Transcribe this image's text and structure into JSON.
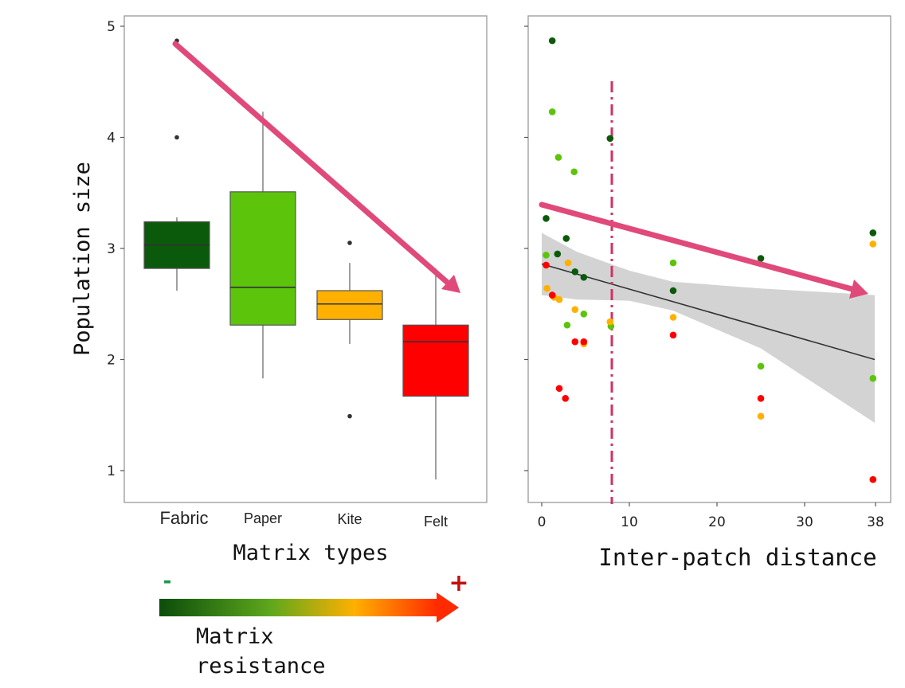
{
  "chart_data": [
    {
      "type": "box",
      "ylabel": "Population size",
      "xlabel": "Matrix types",
      "ylim": [
        0.7,
        5.0
      ],
      "yticks": [
        1,
        2,
        3,
        4,
        5
      ],
      "categories": [
        "Fabric",
        "Paper",
        "Kite",
        "Felt"
      ],
      "boxes": [
        {
          "name": "Fabric",
          "color": "#0b5a0b",
          "whisker_low": 2.62,
          "q1": 2.82,
          "median": 3.03,
          "q3": 3.24,
          "whisker_high": 3.28,
          "outliers": [
            4.0,
            4.87
          ]
        },
        {
          "name": "Paper",
          "color": "#5cc40a",
          "whisker_low": 1.83,
          "q1": 2.31,
          "median": 2.65,
          "q3": 3.51,
          "whisker_high": 4.23,
          "outliers": []
        },
        {
          "name": "Kite",
          "color": "#ffb000",
          "whisker_low": 2.14,
          "q1": 2.36,
          "median": 2.5,
          "q3": 2.62,
          "whisker_high": 2.87,
          "outliers": [
            3.05,
            1.49
          ]
        },
        {
          "name": "Felt",
          "color": "#ff0000",
          "whisker_low": 0.92,
          "q1": 1.67,
          "median": 2.16,
          "q3": 2.31,
          "whisker_high": 2.82,
          "outliers": []
        }
      ],
      "trend_arrow_color": "#e04a7a"
    },
    {
      "type": "scatter",
      "xlabel": "Inter-patch distance",
      "xlim": [
        -1,
        39
      ],
      "ylim": [
        0.7,
        5.0
      ],
      "xticks": [
        0,
        10,
        20,
        30,
        38
      ],
      "yticks": [
        1,
        2,
        3,
        4,
        5
      ],
      "point_colors": {
        "Fabric": "#0b5a0b",
        "Paper": "#5cc40a",
        "Kite": "#ffb000",
        "Felt": "#ff0000"
      },
      "points": [
        {
          "x": 1.2,
          "y": 4.87,
          "group": "Fabric"
        },
        {
          "x": 0.5,
          "y": 3.27,
          "group": "Fabric"
        },
        {
          "x": 2.8,
          "y": 3.09,
          "group": "Fabric"
        },
        {
          "x": 1.8,
          "y": 2.95,
          "group": "Fabric"
        },
        {
          "x": 3.8,
          "y": 2.79,
          "group": "Fabric"
        },
        {
          "x": 4.8,
          "y": 2.74,
          "group": "Fabric"
        },
        {
          "x": 7.8,
          "y": 3.99,
          "group": "Fabric"
        },
        {
          "x": 15,
          "y": 2.62,
          "group": "Fabric"
        },
        {
          "x": 25,
          "y": 2.91,
          "group": "Fabric"
        },
        {
          "x": 37.8,
          "y": 3.14,
          "group": "Fabric"
        },
        {
          "x": 1.2,
          "y": 4.23,
          "group": "Paper"
        },
        {
          "x": 1.9,
          "y": 3.82,
          "group": "Paper"
        },
        {
          "x": 3.7,
          "y": 3.69,
          "group": "Paper"
        },
        {
          "x": 0.5,
          "y": 2.94,
          "group": "Paper"
        },
        {
          "x": 2.9,
          "y": 2.31,
          "group": "Paper"
        },
        {
          "x": 4.8,
          "y": 2.41,
          "group": "Paper"
        },
        {
          "x": 7.9,
          "y": 2.3,
          "group": "Paper"
        },
        {
          "x": 15,
          "y": 2.87,
          "group": "Paper"
        },
        {
          "x": 25,
          "y": 1.94,
          "group": "Paper"
        },
        {
          "x": 37.8,
          "y": 1.83,
          "group": "Paper"
        },
        {
          "x": 3.0,
          "y": 2.87,
          "group": "Kite"
        },
        {
          "x": 0.6,
          "y": 2.64,
          "group": "Kite"
        },
        {
          "x": 1.4,
          "y": 2.56,
          "group": "Kite"
        },
        {
          "x": 2.0,
          "y": 2.54,
          "group": "Kite"
        },
        {
          "x": 3.8,
          "y": 2.45,
          "group": "Kite"
        },
        {
          "x": 4.8,
          "y": 2.14,
          "group": "Kite"
        },
        {
          "x": 7.8,
          "y": 2.34,
          "group": "Kite"
        },
        {
          "x": 15,
          "y": 2.38,
          "group": "Kite"
        },
        {
          "x": 25,
          "y": 1.49,
          "group": "Kite"
        },
        {
          "x": 37.8,
          "y": 3.04,
          "group": "Kite"
        },
        {
          "x": 0.5,
          "y": 2.85,
          "group": "Felt"
        },
        {
          "x": 1.2,
          "y": 2.58,
          "group": "Felt"
        },
        {
          "x": 3.8,
          "y": 2.16,
          "group": "Felt"
        },
        {
          "x": 4.8,
          "y": 2.16,
          "group": "Felt"
        },
        {
          "x": 2.0,
          "y": 1.74,
          "group": "Felt"
        },
        {
          "x": 2.7,
          "y": 1.65,
          "group": "Felt"
        },
        {
          "x": 15,
          "y": 2.22,
          "group": "Felt"
        },
        {
          "x": 25,
          "y": 1.65,
          "group": "Felt"
        },
        {
          "x": 37.8,
          "y": 0.92,
          "group": "Felt"
        }
      ],
      "regression": {
        "x": [
          0,
          38
        ],
        "y": [
          2.86,
          2.0
        ]
      },
      "confidence_band": {
        "x": [
          0,
          4,
          10,
          15,
          25,
          38
        ],
        "upper": [
          3.14,
          2.97,
          2.8,
          2.7,
          2.64,
          2.58
        ],
        "lower": [
          2.58,
          2.54,
          2.53,
          2.44,
          2.1,
          1.43
        ]
      },
      "threshold_x": 8,
      "threshold_color": "#cc3366",
      "trend_arrow_color": "#e04a7a"
    }
  ],
  "legend": {
    "minus": "-",
    "plus": "+",
    "label_line1": "Matrix",
    "label_line2": "resistance",
    "gradient_colors": [
      "#0b4d0b",
      "#5ea81c",
      "#ffb000",
      "#ff2a00"
    ]
  }
}
